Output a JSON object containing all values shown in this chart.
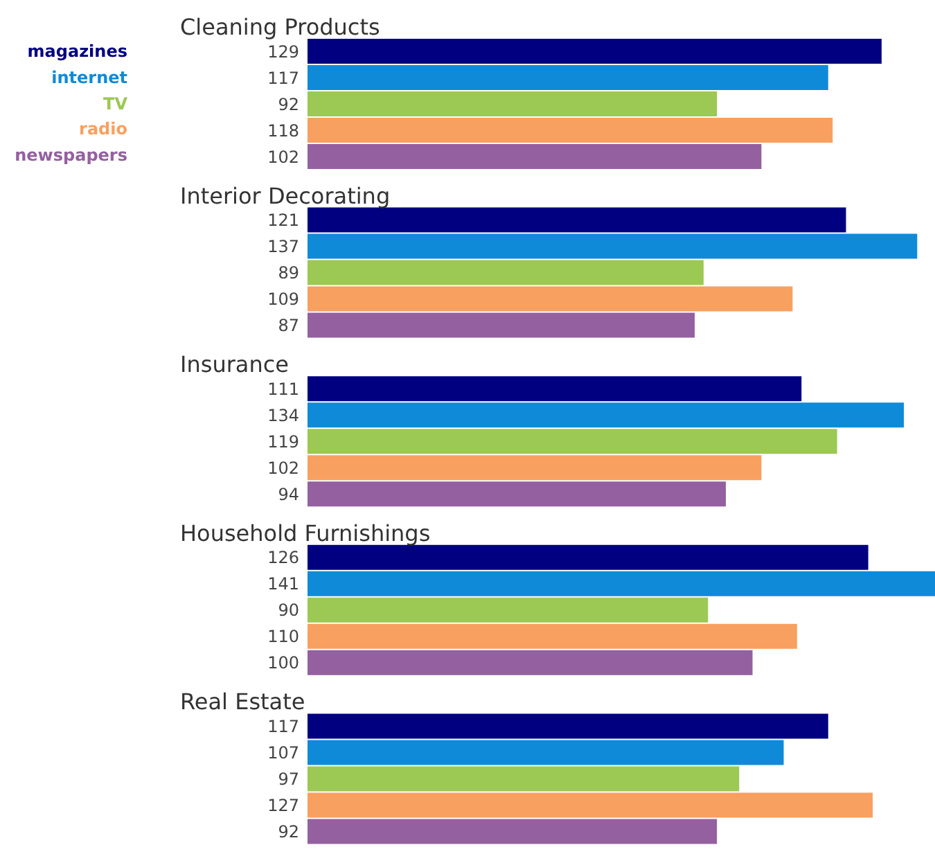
{
  "chart_data": {
    "type": "bar",
    "orientation": "horizontal",
    "data_labels": true,
    "legend": "left",
    "grid": false,
    "categories": [
      "Cleaning Products",
      "Interior Decorating",
      "Insurance",
      "Household Furnishings",
      "Real Estate"
    ],
    "series": [
      {
        "name": "magazines",
        "color": "#000080",
        "values": [
          129,
          121,
          111,
          126,
          117
        ]
      },
      {
        "name": "internet",
        "color": "#0f8ad8",
        "values": [
          117,
          137,
          134,
          141,
          107
        ]
      },
      {
        "name": "TV",
        "color": "#9cc854",
        "values": [
          92,
          89,
          119,
          90,
          97
        ]
      },
      {
        "name": "radio",
        "color": "#f8a060",
        "values": [
          118,
          109,
          102,
          110,
          127
        ]
      },
      {
        "name": "newspapers",
        "color": "#9460a0",
        "values": [
          102,
          87,
          94,
          100,
          92
        ]
      }
    ]
  }
}
